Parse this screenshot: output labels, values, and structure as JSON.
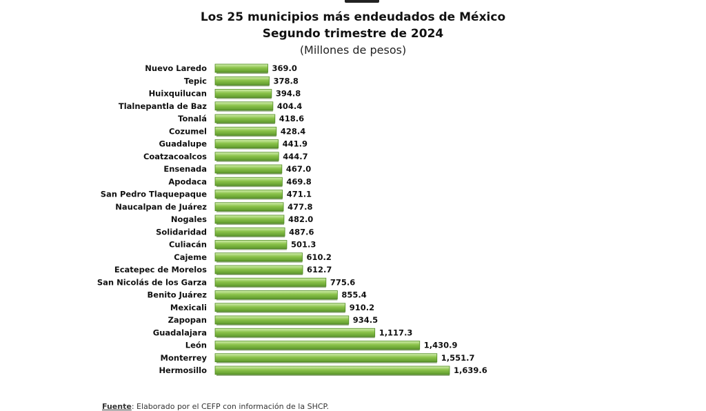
{
  "chart_data": {
    "type": "bar",
    "orientation": "horizontal",
    "title": "Los 25 municipios más endeudados de México",
    "subtitle": "Segundo trimestre de 2024",
    "unit_label": "(Millones de pesos)",
    "categories": [
      "Nuevo Laredo",
      "Tepic",
      "Huixquilucan",
      "Tlalnepantla de Baz",
      "Tonalá",
      "Cozumel",
      "Guadalupe",
      "Coatzacoalcos",
      "Ensenada",
      "Apodaca",
      "San Pedro Tlaquepaque",
      "Naucalpan de Juárez",
      "Nogales",
      "Solidaridad",
      "Culiacán",
      "Cajeme",
      "Ecatepec de Morelos",
      "San Nicolás de los Garza",
      "Benito Juárez",
      "Mexicali",
      "Zapopan",
      "Guadalajara",
      "León",
      "Monterrey",
      "Hermosillo"
    ],
    "values": [
      369.0,
      378.8,
      394.8,
      404.4,
      418.6,
      428.4,
      441.9,
      444.7,
      467.0,
      469.8,
      471.1,
      477.8,
      482.0,
      487.6,
      501.3,
      610.2,
      612.7,
      775.6,
      855.4,
      910.2,
      934.5,
      1117.3,
      1430.9,
      1551.7,
      1639.6
    ],
    "value_labels": [
      "369.0",
      "378.8",
      "394.8",
      "404.4",
      "418.6",
      "428.4",
      "441.9",
      "444.7",
      "467.0",
      "469.8",
      "471.1",
      "477.8",
      "482.0",
      "487.6",
      "501.3",
      "610.2",
      "612.7",
      "775.6",
      "855.4",
      "910.2",
      "934.5",
      "1,117.3",
      "1,430.9",
      "1,551.7",
      "1,639.6"
    ],
    "xlim": [
      0,
      1639.6
    ],
    "grid": false,
    "bar_color": "#8bc34a",
    "bar_dark": "#4e8a1f"
  },
  "footer": {
    "label": "Fuente",
    "text": ": Elaborado por el CEFP con información de la SHCP."
  }
}
